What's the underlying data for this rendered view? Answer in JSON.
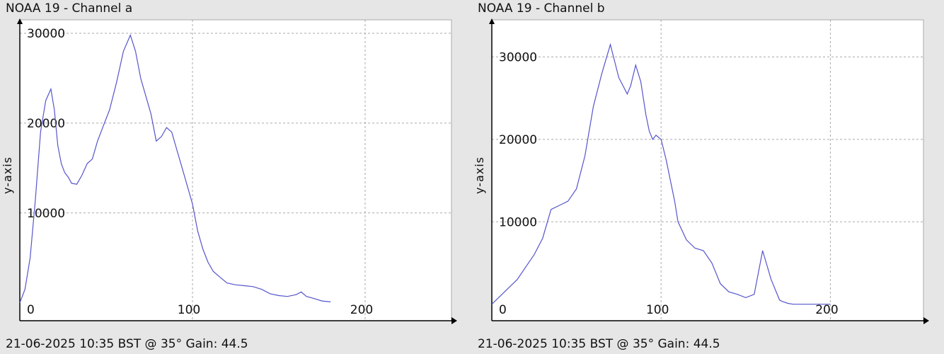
{
  "colors": {
    "line": "#5555cc",
    "grid": "#aaaaaa",
    "plot_bg": "#ffffff",
    "page_bg": "#e6e6e6"
  },
  "chart_data": [
    {
      "type": "line",
      "title": "NOAA 19 - Channel a",
      "ylabel": "y-axis",
      "footer": "21-06-2025 10:35 BST @ 35° Gain: 44.5",
      "xlim": [
        0,
        250
      ],
      "ylim": [
        -2000,
        31500
      ],
      "xticks": [
        0,
        100,
        200
      ],
      "yticks": [
        10000,
        20000,
        30000
      ],
      "grid": true,
      "series": [
        {
          "x": [
            0,
            3,
            6,
            9,
            12,
            15,
            18,
            20,
            22,
            24,
            26,
            28,
            30,
            33,
            36,
            39,
            42,
            45,
            48,
            52,
            56,
            60,
            64,
            67,
            70,
            73,
            76,
            79,
            82,
            85,
            88,
            91,
            94,
            97,
            100,
            103,
            106,
            109,
            112,
            115,
            120,
            125,
            130,
            135,
            140,
            145,
            150,
            155,
            160,
            163,
            166,
            170,
            175,
            180
          ],
          "y": [
            0,
            1500,
            5000,
            11500,
            19000,
            22500,
            23800,
            21500,
            17500,
            15500,
            14500,
            14000,
            13300,
            13200,
            14200,
            15500,
            16000,
            18000,
            19500,
            21500,
            24500,
            28000,
            29800,
            28000,
            25000,
            23000,
            21000,
            18000,
            18500,
            19500,
            19000,
            17000,
            15000,
            13000,
            11000,
            8000,
            6000,
            4500,
            3500,
            3000,
            2200,
            2000,
            1900,
            1800,
            1500,
            1000,
            800,
            700,
            900,
            1200,
            700,
            500,
            200,
            100
          ]
        }
      ]
    },
    {
      "type": "line",
      "title": "NOAA 19 - Channel b",
      "ylabel": "y-axis",
      "footer": "21-06-2025 10:35 BST @ 35° Gain: 44.5",
      "xlim": [
        0,
        255
      ],
      "ylim": [
        -2000,
        34500
      ],
      "xticks": [
        0,
        100,
        200
      ],
      "yticks": [
        10000,
        20000,
        30000
      ],
      "grid": true,
      "series": [
        {
          "x": [
            0,
            5,
            10,
            15,
            20,
            25,
            30,
            35,
            40,
            45,
            50,
            55,
            60,
            65,
            70,
            75,
            80,
            82,
            85,
            88,
            91,
            93,
            95,
            97,
            100,
            103,
            106,
            108,
            110,
            115,
            120,
            125,
            130,
            135,
            140,
            145,
            150,
            155,
            160,
            165,
            170,
            172,
            175,
            178,
            180,
            185,
            190,
            195,
            200
          ],
          "y": [
            0,
            1000,
            2000,
            3000,
            4500,
            6000,
            8000,
            11500,
            12000,
            12500,
            14000,
            18000,
            24000,
            28000,
            31500,
            27500,
            25500,
            26500,
            29000,
            27000,
            23000,
            21000,
            20000,
            20500,
            20000,
            17500,
            14500,
            12500,
            10000,
            7800,
            6800,
            6500,
            5000,
            2500,
            1500,
            1200,
            800,
            1200,
            6500,
            3000,
            500,
            300,
            100,
            0,
            0,
            0,
            0,
            0,
            0
          ]
        }
      ]
    }
  ]
}
